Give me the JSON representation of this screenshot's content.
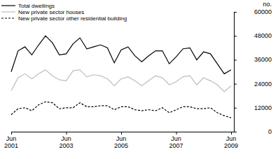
{
  "chart_data": {
    "type": "line",
    "y_label": "no.",
    "categories": [
      "Jun 2001",
      null,
      null,
      null,
      null,
      null,
      null,
      null,
      "Jun 2003",
      null,
      null,
      null,
      null,
      null,
      null,
      null,
      "Jun 2005",
      null,
      null,
      null,
      null,
      null,
      null,
      null,
      "Jun 2007",
      null,
      null,
      null,
      null,
      null,
      null,
      null,
      "Jun 2009"
    ],
    "series": [
      {
        "name": "Total dwellings",
        "color": "#000000",
        "line_style": "solid",
        "values": [
          30000,
          40500,
          42500,
          38500,
          43500,
          48000,
          44500,
          38500,
          39000,
          44000,
          47000,
          41500,
          42500,
          43500,
          42000,
          34500,
          41000,
          42500,
          38000,
          35000,
          38000,
          40500,
          40500,
          34000,
          37500,
          41500,
          42000,
          36000,
          40000,
          39000,
          34000,
          29000,
          31000
        ]
      },
      {
        "name": "New private sector houses",
        "color": "#bdbdbd",
        "line_style": "solid",
        "values": [
          20500,
          27000,
          29000,
          26500,
          29000,
          31000,
          28000,
          26000,
          25500,
          30500,
          31000,
          27500,
          28500,
          28000,
          26500,
          23000,
          26500,
          27500,
          25500,
          23000,
          25500,
          28000,
          27000,
          23500,
          25000,
          27500,
          28000,
          23500,
          27000,
          25500,
          23500,
          20000,
          23000
        ]
      },
      {
        "name": "New private sector other residential building",
        "color": "#000000",
        "line_style": "dashed",
        "values": [
          8500,
          11500,
          12000,
          10500,
          13500,
          15000,
          14500,
          11500,
          12000,
          12000,
          14500,
          12500,
          12500,
          13000,
          13000,
          11000,
          12500,
          12500,
          11000,
          10500,
          11000,
          10500,
          12000,
          9500,
          11000,
          12500,
          12500,
          11500,
          11500,
          12000,
          9500,
          8000,
          7000
        ]
      }
    ],
    "ylim": [
      0,
      60000
    ],
    "yticks": [
      0,
      12000,
      24000,
      36000,
      48000,
      60000
    ],
    "grid": false,
    "legend": "top-left"
  }
}
